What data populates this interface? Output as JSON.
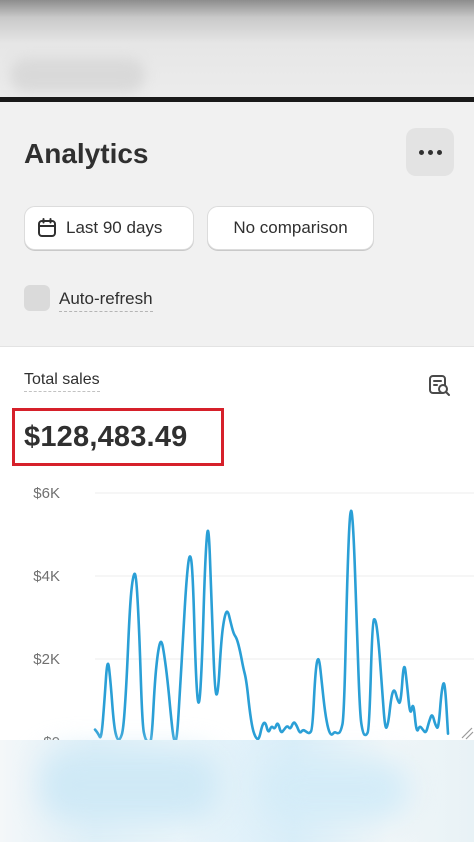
{
  "header": {
    "title": "Analytics",
    "more_icon": "more-horizontal-icon",
    "date_range": {
      "label": "Last 90 days",
      "icon": "calendar-icon"
    },
    "comparison": {
      "label": "No comparison"
    },
    "auto_refresh": {
      "label": "Auto-refresh",
      "checked": false
    }
  },
  "card": {
    "label": "Total sales",
    "value": "$128,483.49",
    "report_icon": "report-search-icon",
    "highlight_color": "#d6202a"
  },
  "chart_data": {
    "type": "line",
    "title": "",
    "xlabel": "",
    "ylabel": "",
    "y_ticks": [
      "$6K",
      "$4K",
      "$2K",
      "$0"
    ],
    "ylim": [
      0,
      6000
    ],
    "grid": true,
    "color": "#2a9fd6",
    "series": [
      {
        "values": [
          300,
          200,
          50,
          1000,
          2100,
          1400,
          400,
          50,
          60,
          300,
          1400,
          3200,
          4000,
          4100,
          2800,
          400,
          50,
          0,
          20,
          1500,
          2200,
          2500,
          2100,
          1500,
          700,
          0,
          30,
          1300,
          2600,
          3900,
          4600,
          4200,
          1500,
          700,
          2000,
          4500,
          5400,
          3400,
          1200,
          1100,
          2400,
          3000,
          3200,
          2900,
          2600,
          2500,
          2200,
          1800,
          1500,
          800,
          300,
          100,
          50,
          400,
          500,
          200,
          400,
          300,
          500,
          200,
          300,
          400,
          300,
          500,
          400,
          200,
          300,
          250,
          200,
          300,
          1800,
          2100,
          1400,
          700,
          300,
          150,
          250,
          200,
          250,
          600,
          3900,
          5800,
          5200,
          3000,
          700,
          200,
          150,
          300,
          2900,
          3000,
          2400,
          1400,
          300,
          400,
          1100,
          1300,
          1000,
          900,
          2000,
          1400,
          600,
          1000,
          200,
          400,
          300,
          200,
          500,
          700,
          400,
          300,
          1300,
          1500,
          200
        ]
      }
    ]
  }
}
